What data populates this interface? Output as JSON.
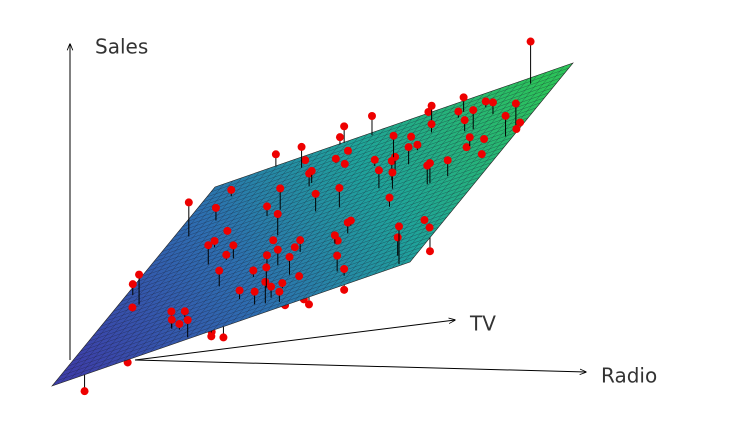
{
  "axes": {
    "z_label": "Sales",
    "x_label": "TV",
    "y_label": "Radio"
  }
}
